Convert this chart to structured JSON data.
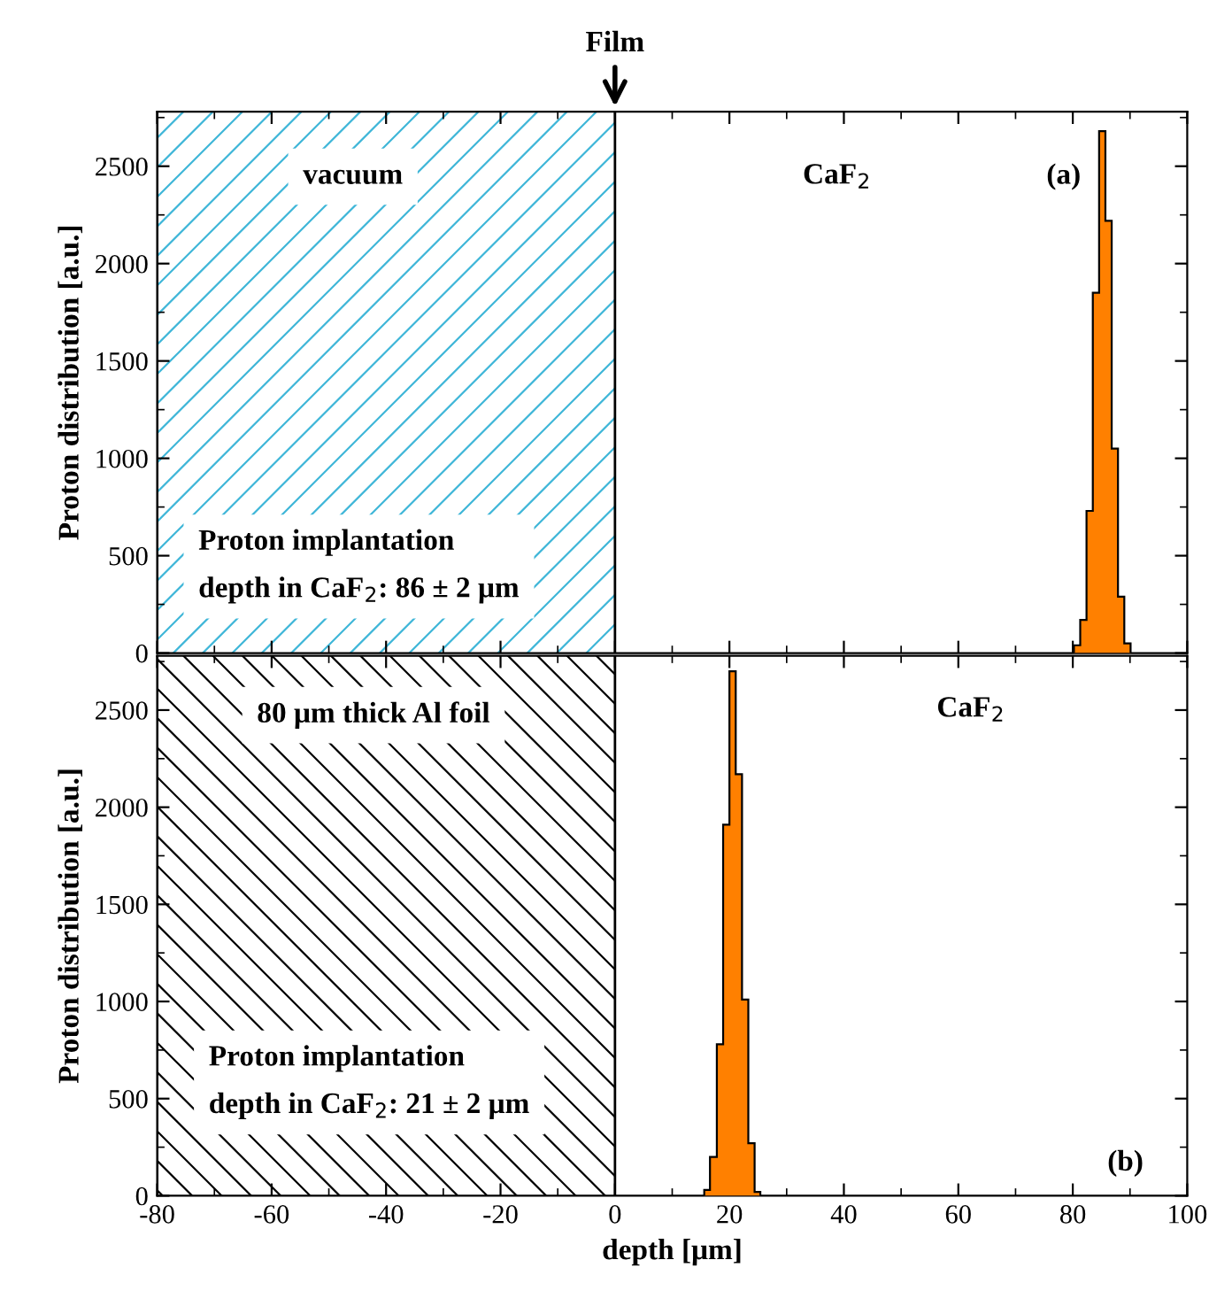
{
  "chart_data": [
    {
      "type": "histogram",
      "ylabel": "Proton distribution [a.u.]",
      "bins": [
        80.2,
        81.3,
        82.4,
        83.5,
        84.6,
        85.7,
        86.8,
        87.9,
        89.0,
        90.1
      ],
      "values": [
        40,
        170,
        730,
        1850,
        2680,
        2220,
        1050,
        290,
        50
      ],
      "color": "#ff8000",
      "xlim": [
        -80,
        100
      ],
      "ylim": [
        0,
        2780
      ],
      "xticks": [
        -80,
        -60,
        -40,
        -20,
        0,
        20,
        40,
        60,
        80,
        100
      ],
      "yticks": [
        0,
        500,
        1000,
        1500,
        2000,
        2500
      ],
      "tick_labels": "y",
      "bands": [
        {
          "axis": "x",
          "from": -80,
          "to": 0,
          "color": "#3fb6d8"
        }
      ],
      "annotations": [
        "vacuum",
        "CaF$_{2}$",
        "(a)",
        "Proton implantation\ndepth in CaF$_{2}$: 86 ± 2 μm",
        {
          "text": "Film",
          "x": 0,
          "y": 2780
        }
      ]
    },
    {
      "type": "histogram",
      "xlabel": "depth [μm]",
      "ylabel": "Proton distribution [a.u.]",
      "bins": [
        15.6,
        16.6,
        17.8,
        18.9,
        20.0,
        21.1,
        22.2,
        23.3,
        24.4,
        25.4
      ],
      "values": [
        30,
        200,
        780,
        1910,
        2700,
        2170,
        1010,
        270,
        20
      ],
      "color": "#ff8000",
      "xlim": [
        -80,
        100
      ],
      "ylim": [
        0,
        2780
      ],
      "xticks": [
        -80,
        -60,
        -40,
        -20,
        0,
        20,
        40,
        60,
        80,
        100
      ],
      "yticks": [
        0,
        500,
        1000,
        1500,
        2000,
        2500
      ],
      "bands": [
        {
          "axis": "x",
          "from": -80,
          "to": 0,
          "color": "#000000"
        }
      ],
      "annotations": [
        "80 μm thick Al foil",
        "CaF$_{2}$",
        "(b)",
        "Proton implantation\ndepth in CaF$_{2}$: 21 ± 2 μm"
      ]
    }
  ]
}
